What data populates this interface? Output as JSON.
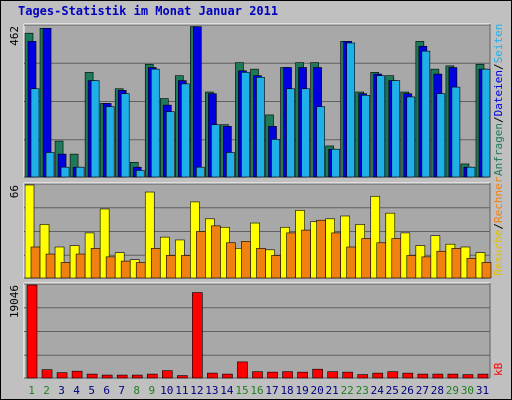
{
  "title": "Tages-Statistik im Monat Januar 2011",
  "colors": {
    "anfragen": "#1f7a5a",
    "dateien": "#0000e0",
    "seiten": "#1fb0e8",
    "besuche": "#ffff00",
    "rechner": "#f08010",
    "kb": "#ff0000",
    "weekend": "#208020",
    "weekday": "#000080",
    "background": "#c0c0c0"
  },
  "legend_right": {
    "top": [
      {
        "text": "Anfragen",
        "color": "#1f7a5a"
      },
      {
        "text": "/",
        "color": "#000000"
      },
      {
        "text": "Dateien",
        "color": "#0000e0"
      },
      {
        "text": "/",
        "color": "#000000"
      },
      {
        "text": "Seiten",
        "color": "#1fb0e8"
      }
    ],
    "middle": [
      {
        "text": "Besuche",
        "color": "#e0c000"
      },
      {
        "text": "/",
        "color": "#000000"
      },
      {
        "text": "Rechner",
        "color": "#f08010"
      }
    ],
    "bottom": [
      {
        "text": "kB",
        "color": "#ff0000"
      }
    ]
  },
  "chart_data": [
    {
      "type": "bar",
      "panel": "top",
      "ymax_label": "462",
      "ymax": 462,
      "categories": [
        "1",
        "2",
        "3",
        "4",
        "5",
        "6",
        "7",
        "8",
        "9",
        "10",
        "11",
        "12",
        "13",
        "14",
        "15",
        "16",
        "17",
        "18",
        "19",
        "20",
        "21",
        "22",
        "23",
        "24",
        "25",
        "26",
        "27",
        "28",
        "29",
        "30",
        "31"
      ],
      "weekend_days": [
        "1",
        "2",
        "8",
        "9",
        "15",
        "16",
        "22",
        "23",
        "29",
        "30"
      ],
      "series": [
        {
          "name": "Anfragen",
          "values": [
            440,
            455,
            110,
            70,
            320,
            225,
            270,
            45,
            345,
            240,
            310,
            460,
            260,
            160,
            350,
            330,
            190,
            335,
            350,
            350,
            95,
            415,
            260,
            320,
            310,
            260,
            415,
            330,
            340,
            40,
            345
          ]
        },
        {
          "name": "Dateien",
          "values": [
            415,
            455,
            70,
            30,
            295,
            225,
            265,
            30,
            335,
            220,
            295,
            460,
            255,
            155,
            325,
            310,
            155,
            335,
            335,
            335,
            85,
            415,
            255,
            315,
            295,
            255,
            400,
            315,
            335,
            30,
            330
          ]
        },
        {
          "name": "Seiten",
          "values": [
            270,
            75,
            30,
            30,
            295,
            215,
            255,
            20,
            330,
            200,
            285,
            30,
            160,
            75,
            320,
            305,
            115,
            270,
            270,
            215,
            85,
            410,
            250,
            310,
            295,
            245,
            385,
            255,
            275,
            30,
            330
          ]
        }
      ]
    },
    {
      "type": "bar",
      "panel": "middle",
      "ymax_label": "66",
      "ymax": 66,
      "categories": [
        "1",
        "2",
        "3",
        "4",
        "5",
        "6",
        "7",
        "8",
        "9",
        "10",
        "11",
        "12",
        "13",
        "14",
        "15",
        "16",
        "17",
        "18",
        "19",
        "20",
        "21",
        "22",
        "23",
        "24",
        "25",
        "26",
        "27",
        "28",
        "29",
        "30",
        "31"
      ],
      "series": [
        {
          "name": "Besuche",
          "values": [
            66,
            38,
            22,
            23,
            32,
            49,
            18,
            13,
            61,
            29,
            27,
            54,
            42,
            36,
            21,
            39,
            20,
            36,
            48,
            40,
            42,
            44,
            38,
            58,
            46,
            32,
            23,
            30,
            24,
            22,
            18
          ]
        },
        {
          "name": "Rechner",
          "values": [
            22,
            17,
            11,
            17,
            21,
            15,
            12,
            11,
            21,
            16,
            16,
            33,
            37,
            25,
            26,
            21,
            16,
            32,
            34,
            41,
            32,
            22,
            28,
            25,
            28,
            16,
            15,
            19,
            21,
            14,
            11
          ]
        }
      ]
    },
    {
      "type": "bar",
      "panel": "bottom",
      "ymax_label": "19046",
      "ymax": 19046,
      "categories": [
        "1",
        "2",
        "3",
        "4",
        "5",
        "6",
        "7",
        "8",
        "9",
        "10",
        "11",
        "12",
        "13",
        "14",
        "15",
        "16",
        "17",
        "18",
        "19",
        "20",
        "21",
        "22",
        "23",
        "24",
        "25",
        "26",
        "27",
        "28",
        "29",
        "30",
        "31"
      ],
      "series": [
        {
          "name": "kB",
          "values": [
            19046,
            1700,
            1100,
            1400,
            800,
            600,
            600,
            600,
            800,
            1500,
            500,
            17500,
            1000,
            800,
            3300,
            1300,
            1200,
            1300,
            1200,
            1800,
            1300,
            1200,
            700,
            1000,
            1300,
            1000,
            800,
            800,
            800,
            700,
            800
          ]
        }
      ]
    }
  ]
}
